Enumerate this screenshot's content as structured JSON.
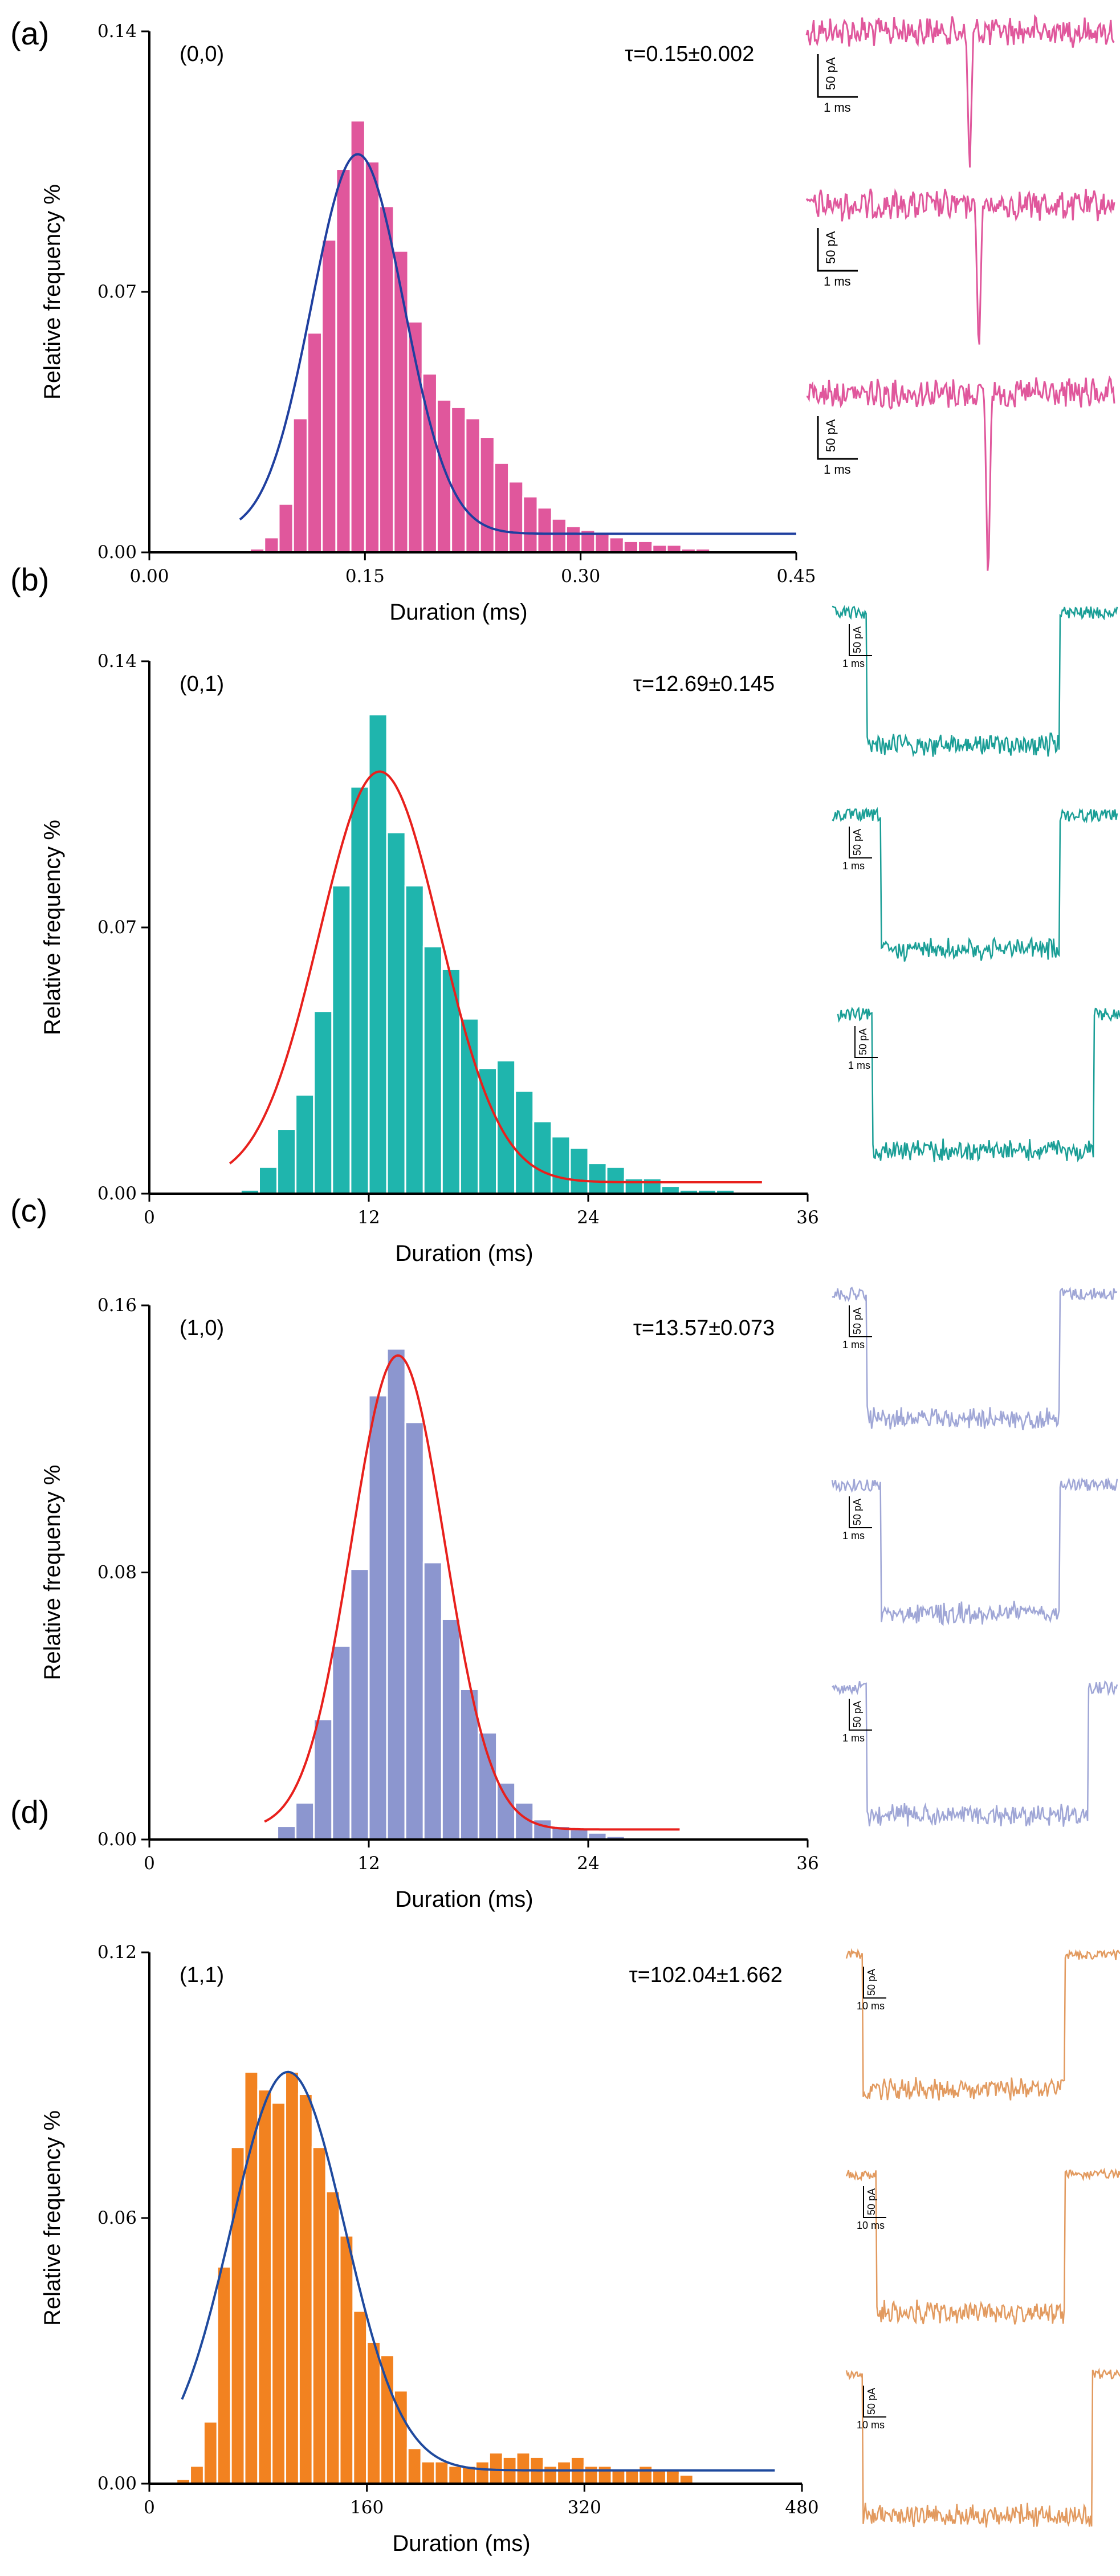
{
  "panels": [
    {
      "label": "(a)",
      "state": "(0,0)",
      "tau": "τ=0.15±0.002",
      "color": "#E0579C",
      "fit_color": "#1F3F9F",
      "traces_color": "#E0579C",
      "traces": [
        {
          "amp": "50 pA",
          "time": "1 ms",
          "shape": "spike"
        },
        {
          "amp": "50 pA",
          "time": "1 ms",
          "shape": "spike"
        },
        {
          "amp": "50 pA",
          "time": "1 ms",
          "shape": "spike"
        }
      ]
    },
    {
      "label": "(b)",
      "state": "(0,1)",
      "tau": "τ=12.69±0.145",
      "color": "#1FB5AD",
      "fit_color": "#E8201C",
      "traces_color": "#1A9E96",
      "traces": [
        {
          "amp": "50 pA",
          "time": "1 ms",
          "shape": "box"
        },
        {
          "amp": "50 pA",
          "time": "1 ms",
          "shape": "box"
        },
        {
          "amp": "50 pA",
          "time": "1 ms",
          "shape": "box"
        }
      ]
    },
    {
      "label": "(c)",
      "state": "(1,0)",
      "tau": "τ=13.57±0.073",
      "color": "#8C96CF",
      "fit_color": "#E8201C",
      "traces_color": "#9FA6D6",
      "traces": [
        {
          "amp": "50 pA",
          "time": "1 ms",
          "shape": "box"
        },
        {
          "amp": "50 pA",
          "time": "1 ms",
          "shape": "box"
        },
        {
          "amp": "50 pA",
          "time": "1 ms",
          "shape": "box"
        }
      ]
    },
    {
      "label": "(d)",
      "state": "(1,1)",
      "tau": "τ=102.04±1.662",
      "color": "#F28220",
      "fit_color": "#1F4A9E",
      "traces_color": "#E29A5F",
      "traces": [
        {
          "amp": "50 pA",
          "time": "10 ms",
          "shape": "box"
        },
        {
          "amp": "50 pA",
          "time": "10 ms",
          "shape": "box"
        },
        {
          "amp": "50 pA",
          "time": "10 ms",
          "shape": "box"
        }
      ]
    }
  ],
  "chart_data": [
    {
      "type": "bar",
      "xlabel": "Duration (ms)",
      "ylabel": "Relative frequency %",
      "xlim": [
        0,
        0.45
      ],
      "ylim": [
        0,
        0.14
      ],
      "xticks": [
        "0.00",
        "0.15",
        "0.30",
        "0.45"
      ],
      "yticks": [
        "0.00",
        "0.07",
        "0.14"
      ],
      "bin_width": 0.01,
      "x": [
        0.075,
        0.085,
        0.095,
        0.105,
        0.115,
        0.125,
        0.135,
        0.145,
        0.155,
        0.165,
        0.175,
        0.185,
        0.195,
        0.205,
        0.215,
        0.225,
        0.235,
        0.245,
        0.255,
        0.265,
        0.275,
        0.285,
        0.295,
        0.305,
        0.315,
        0.325,
        0.335,
        0.345,
        0.355,
        0.365,
        0.375,
        0.385
      ],
      "values": [
        0.001,
        0.004,
        0.013,
        0.036,
        0.059,
        0.084,
        0.103,
        0.116,
        0.105,
        0.093,
        0.081,
        0.062,
        0.048,
        0.041,
        0.039,
        0.036,
        0.031,
        0.024,
        0.019,
        0.015,
        0.012,
        0.009,
        0.007,
        0.006,
        0.005,
        0.004,
        0.003,
        0.003,
        0.002,
        0.002,
        0.001,
        0.001
      ],
      "fit": {
        "type": "gaussian",
        "peak_x": 0.145,
        "peak_y": 0.107,
        "sigma": 0.032,
        "baseline": 0.005,
        "x_range": [
          0.063,
          0.45
        ]
      }
    },
    {
      "type": "bar",
      "xlabel": "Duration (ms)",
      "ylabel": "Relative frequency %",
      "xlim": [
        0,
        36
      ],
      "ylim": [
        0,
        0.14
      ],
      "xticks": [
        "0",
        "12",
        "24",
        "36"
      ],
      "yticks": [
        "0.00",
        "0.07",
        "0.14"
      ],
      "bin_width": 1,
      "x": [
        5.5,
        6.5,
        7.5,
        8.5,
        9.5,
        10.5,
        11.5,
        12.5,
        13.5,
        14.5,
        15.5,
        16.5,
        17.5,
        18.5,
        19.5,
        20.5,
        21.5,
        22.5,
        23.5,
        24.5,
        25.5,
        26.5,
        27.5,
        28.5,
        29.5,
        30.5,
        31.5
      ],
      "values": [
        0.001,
        0.007,
        0.017,
        0.026,
        0.048,
        0.081,
        0.107,
        0.126,
        0.095,
        0.081,
        0.065,
        0.059,
        0.046,
        0.033,
        0.035,
        0.027,
        0.019,
        0.015,
        0.012,
        0.008,
        0.007,
        0.004,
        0.004,
        0.002,
        0.001,
        0.001,
        0.001
      ],
      "fit": {
        "type": "gaussian",
        "peak_x": 12.6,
        "peak_y": 0.111,
        "sigma": 3.3,
        "baseline": 0.003,
        "x_range": [
          4.4,
          33.5
        ]
      }
    },
    {
      "type": "bar",
      "xlabel": "Duration (ms)",
      "ylabel": "Relative frequency %",
      "xlim": [
        0,
        36
      ],
      "ylim": [
        0,
        0.16
      ],
      "xticks": [
        "0",
        "12",
        "24",
        "36"
      ],
      "yticks": [
        "0.00",
        "0.08",
        "0.16"
      ],
      "bin_width": 1,
      "x": [
        7.5,
        8.5,
        9.5,
        10.5,
        11.5,
        12.5,
        13.5,
        14.5,
        15.5,
        16.5,
        17.5,
        18.5,
        19.5,
        20.5,
        21.5,
        22.5,
        23.5,
        24.5,
        25.5
      ],
      "values": [
        0.004,
        0.011,
        0.036,
        0.058,
        0.081,
        0.133,
        0.147,
        0.125,
        0.083,
        0.066,
        0.045,
        0.032,
        0.017,
        0.011,
        0.006,
        0.004,
        0.003,
        0.002,
        0.001
      ],
      "fit": {
        "type": "gaussian",
        "peak_x": 13.6,
        "peak_y": 0.145,
        "sigma": 2.55,
        "baseline": 0.003,
        "x_range": [
          6.3,
          29.0
        ]
      }
    },
    {
      "type": "bar",
      "xlabel": "Duration (ms)",
      "ylabel": "Relative frequency %",
      "xlim": [
        0,
        480
      ],
      "ylim": [
        0,
        0.12
      ],
      "xticks": [
        "0",
        "160",
        "320",
        "480"
      ],
      "yticks": [
        "0.00",
        "0.06",
        "0.12"
      ],
      "bin_width": 10,
      "x": [
        25,
        35,
        45,
        55,
        65,
        75,
        85,
        95,
        105,
        115,
        125,
        135,
        145,
        155,
        165,
        175,
        185,
        195,
        205,
        215,
        225,
        235,
        245,
        255,
        265,
        275,
        285,
        295,
        305,
        315,
        325,
        335,
        345,
        355,
        365,
        375,
        385,
        395
      ],
      "values": [
        0.001,
        0.004,
        0.014,
        0.049,
        0.076,
        0.093,
        0.089,
        0.086,
        0.093,
        0.088,
        0.076,
        0.066,
        0.056,
        0.039,
        0.032,
        0.029,
        0.021,
        0.008,
        0.005,
        0.005,
        0.004,
        0.004,
        0.005,
        0.007,
        0.006,
        0.007,
        0.006,
        0.004,
        0.005,
        0.006,
        0.004,
        0.004,
        0.003,
        0.003,
        0.004,
        0.003,
        0.003,
        0.002
      ],
      "fit": {
        "type": "gaussian",
        "peak_x": 102,
        "peak_y": 0.093,
        "sigma": 42,
        "baseline": 0.003,
        "x_range": [
          24,
          460
        ]
      }
    }
  ]
}
